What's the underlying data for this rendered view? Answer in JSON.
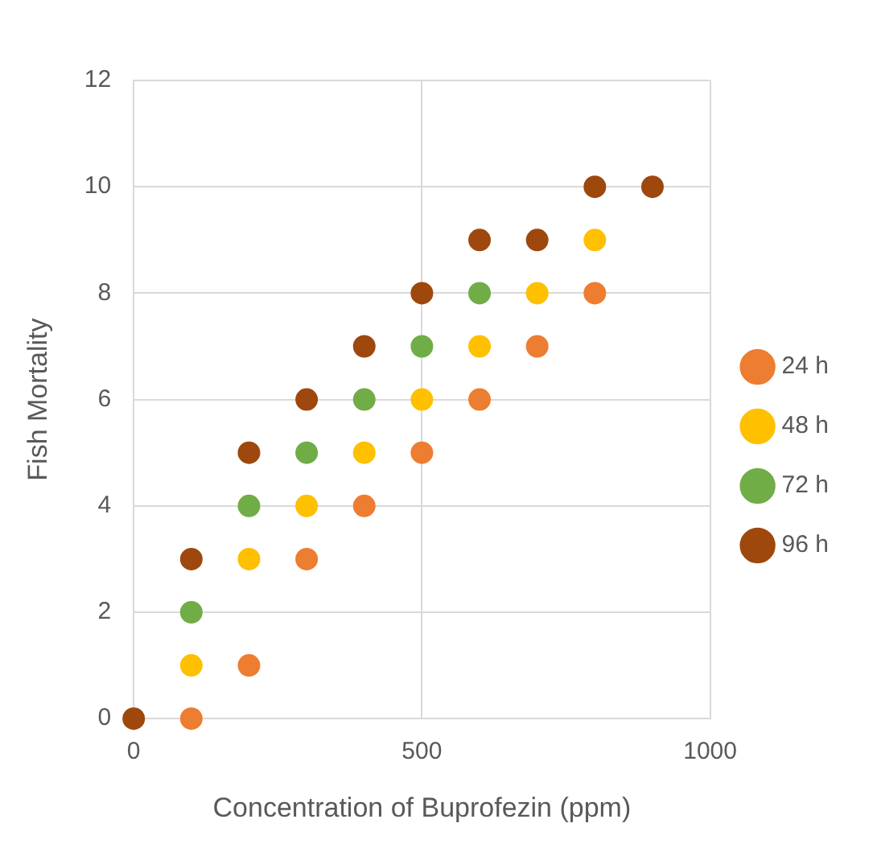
{
  "chart_data": {
    "type": "scatter",
    "xlabel": "Concentration of Buprofezin (ppm)",
    "ylabel": "Fish Mortality",
    "x": [
      0,
      100,
      200,
      300,
      400,
      500,
      600,
      700,
      800,
      900
    ],
    "series": [
      {
        "name": "24 h",
        "color": "#ed7d31",
        "values": [
          null,
          0,
          1,
          3,
          4,
          5,
          6,
          7,
          8,
          null
        ]
      },
      {
        "name": "48 h",
        "color": "#ffc000",
        "values": [
          null,
          1,
          3,
          4,
          5,
          6,
          7,
          8,
          9,
          null
        ]
      },
      {
        "name": "72 h",
        "color": "#70ad47",
        "values": [
          null,
          2,
          4,
          5,
          6,
          7,
          8,
          null,
          null,
          null
        ]
      },
      {
        "name": "96 h",
        "color": "#9e480e",
        "values": [
          0,
          3,
          5,
          6,
          7,
          8,
          9,
          9,
          10,
          10
        ]
      }
    ],
    "xlim": [
      0,
      1000
    ],
    "xticks": [
      0,
      500,
      1000
    ],
    "ylim": [
      0,
      12
    ],
    "yticks": [
      0,
      2,
      4,
      6,
      8,
      10,
      12
    ],
    "grid": true,
    "legend": "right",
    "marker": "circle"
  }
}
